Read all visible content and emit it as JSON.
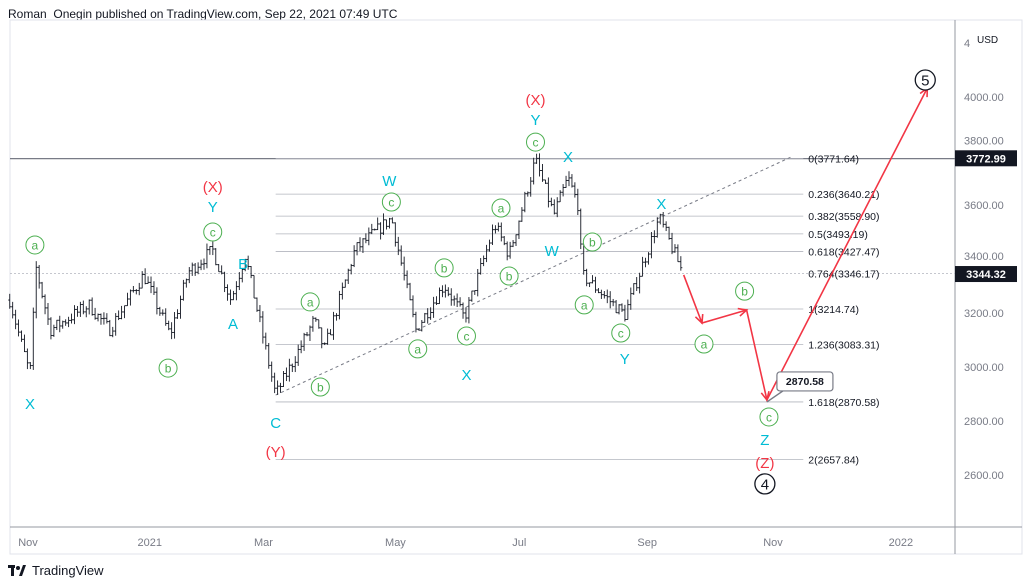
{
  "header": {
    "publisher_line": "Roman_Onegin published on TradingView.com, Sep 22, 2021 07:49 UTC"
  },
  "footer": {
    "brand": "TradingView"
  },
  "colors": {
    "bar": "#131722",
    "wave_green": "#4caf50",
    "wave_cyan": "#00bcd4",
    "wave_red": "#f23645",
    "projection": "#f23645",
    "grid": "#b2b5be"
  },
  "chart_data": {
    "type": "ohlc",
    "currency": "USD",
    "y_range": [
      2440,
      4230
    ],
    "y_ticks": [
      "4000.00",
      "3800.00",
      "3600.00",
      "3400.00",
      "3200.00",
      "3000.00",
      "2800.00",
      "2600.00"
    ],
    "y_tick_values": [
      4000,
      3800,
      3600,
      3400,
      3200,
      3000,
      2800,
      2600
    ],
    "y_partial_label": "4",
    "x_ticks": [
      {
        "label": "Nov",
        "day": 0
      },
      {
        "label": "2021",
        "day": 60
      },
      {
        "label": "Mar",
        "day": 116
      },
      {
        "label": "May",
        "day": 181
      },
      {
        "label": "Jul",
        "day": 242
      },
      {
        "label": "Sep",
        "day": 305
      },
      {
        "label": "Nov",
        "day": 367
      },
      {
        "label": "2022",
        "day": 430
      }
    ],
    "day_range": [
      -9,
      460
    ],
    "price_path": [
      [
        -9,
        3248
      ],
      [
        1,
        2970
      ],
      [
        4,
        3367
      ],
      [
        11,
        3137
      ],
      [
        30,
        3230
      ],
      [
        40,
        3137
      ],
      [
        57,
        3341
      ],
      [
        70,
        3118
      ],
      [
        79,
        3352
      ],
      [
        91,
        3433
      ],
      [
        100,
        3248
      ],
      [
        107,
        3415
      ],
      [
        122,
        2896
      ],
      [
        141,
        3174
      ],
      [
        146,
        3063
      ],
      [
        161,
        3433
      ],
      [
        179,
        3552
      ],
      [
        191,
        3137
      ],
      [
        205,
        3304
      ],
      [
        215,
        3181
      ],
      [
        230,
        3526
      ],
      [
        237,
        3415
      ],
      [
        250,
        3767
      ],
      [
        259,
        3563
      ],
      [
        266,
        3700
      ],
      [
        271,
        3600
      ],
      [
        273,
        3341
      ],
      [
        294,
        3193
      ],
      [
        311,
        3552
      ],
      [
        323,
        3341
      ]
    ],
    "price_badges": [
      {
        "label": "3772.99",
        "value": 3772.99
      },
      {
        "label": "3344.32",
        "value": 3344.32
      }
    ],
    "horizontal_line": 3771.64,
    "trendline": [
      [
        122,
        2896
      ],
      [
        376,
        3778
      ]
    ],
    "fib_start_day": 122,
    "fib_end_day": 376,
    "fib_levels": [
      {
        "label": "0(3771.64)",
        "value": 3771.64
      },
      {
        "label": "0.236(3640.21)",
        "value": 3640.21
      },
      {
        "label": "0.382(3558.90)",
        "value": 3558.9
      },
      {
        "label": "0.5(3493.19)",
        "value": 3493.19
      },
      {
        "label": "0.618(3427.47)",
        "value": 3427.47
      },
      {
        "label": "0.764(3346.17)",
        "value": 3346.17
      },
      {
        "label": "1(3214.74)",
        "value": 3214.74
      },
      {
        "label": "1.236(3083.31)",
        "value": 3083.31
      },
      {
        "label": "1.618(2870.58)",
        "value": 2870.58
      },
      {
        "label": "2(2657.84)",
        "value": 2657.84
      }
    ],
    "callout": {
      "label": "2870.58",
      "day": 364,
      "value": 2870.58
    },
    "projection": [
      [
        323,
        3341
      ],
      [
        332,
        3163
      ],
      [
        354,
        3211
      ],
      [
        364,
        2878
      ],
      [
        443,
        4033
      ]
    ],
    "wave_labels": [
      {
        "text": "a",
        "style": "green",
        "day": 3.4,
        "price": 3452
      },
      {
        "text": "X",
        "style": "cyan",
        "day": 1,
        "price": 2867
      },
      {
        "text": "b",
        "style": "green",
        "day": 69,
        "price": 2996
      },
      {
        "text": "(X)",
        "style": "red",
        "day": 91,
        "price": 3670
      },
      {
        "text": "Y",
        "style": "cyan",
        "day": 91,
        "price": 3596
      },
      {
        "text": "c",
        "style": "green",
        "day": 91,
        "price": 3500
      },
      {
        "text": "B",
        "style": "cyan",
        "day": 106,
        "price": 3385
      },
      {
        "text": "A",
        "style": "cyan",
        "day": 101,
        "price": 3163
      },
      {
        "text": "C",
        "style": "cyan",
        "day": 122,
        "price": 2796
      },
      {
        "text": "(Y)",
        "style": "red",
        "day": 122,
        "price": 2689
      },
      {
        "text": "a",
        "style": "green",
        "day": 139,
        "price": 3241
      },
      {
        "text": "b",
        "style": "green",
        "day": 144,
        "price": 2926
      },
      {
        "text": "W",
        "style": "cyan",
        "day": 178,
        "price": 3693
      },
      {
        "text": "c",
        "style": "green",
        "day": 179,
        "price": 3611
      },
      {
        "text": "b",
        "style": "green",
        "day": 205,
        "price": 3367
      },
      {
        "text": "a",
        "style": "green",
        "day": 192,
        "price": 3067
      },
      {
        "text": "c",
        "style": "green",
        "day": 216,
        "price": 3115
      },
      {
        "text": "X",
        "style": "cyan",
        "day": 216,
        "price": 2974
      },
      {
        "text": "a",
        "style": "green",
        "day": 233,
        "price": 3589
      },
      {
        "text": "b",
        "style": "green",
        "day": 237,
        "price": 3337
      },
      {
        "text": "(X)",
        "style": "red",
        "day": 250,
        "price": 3993
      },
      {
        "text": "Y",
        "style": "cyan",
        "day": 250,
        "price": 3919
      },
      {
        "text": "c",
        "style": "green",
        "day": 250,
        "price": 3833
      },
      {
        "text": "X",
        "style": "cyan",
        "day": 266,
        "price": 3781
      },
      {
        "text": "W",
        "style": "cyan",
        "day": 258,
        "price": 3433
      },
      {
        "text": "b",
        "style": "green",
        "day": 278,
        "price": 3463
      },
      {
        "text": "a",
        "style": "green",
        "day": 274,
        "price": 3230
      },
      {
        "text": "c",
        "style": "green",
        "day": 292,
        "price": 3126
      },
      {
        "text": "Y",
        "style": "cyan",
        "day": 294,
        "price": 3033
      },
      {
        "text": "X",
        "style": "cyan",
        "day": 312,
        "price": 3607
      },
      {
        "text": "b",
        "style": "green",
        "day": 353,
        "price": 3281
      },
      {
        "text": "a",
        "style": "green",
        "day": 333,
        "price": 3085
      },
      {
        "text": "c",
        "style": "green",
        "day": 365,
        "price": 2815
      },
      {
        "text": "Z",
        "style": "cyan",
        "day": 363,
        "price": 2733
      },
      {
        "text": "(Z)",
        "style": "red",
        "day": 363,
        "price": 2648
      },
      {
        "text": "4",
        "style": "black",
        "day": 363,
        "price": 2567
      },
      {
        "text": "5",
        "style": "black",
        "day": 442,
        "price": 4063
      }
    ]
  }
}
